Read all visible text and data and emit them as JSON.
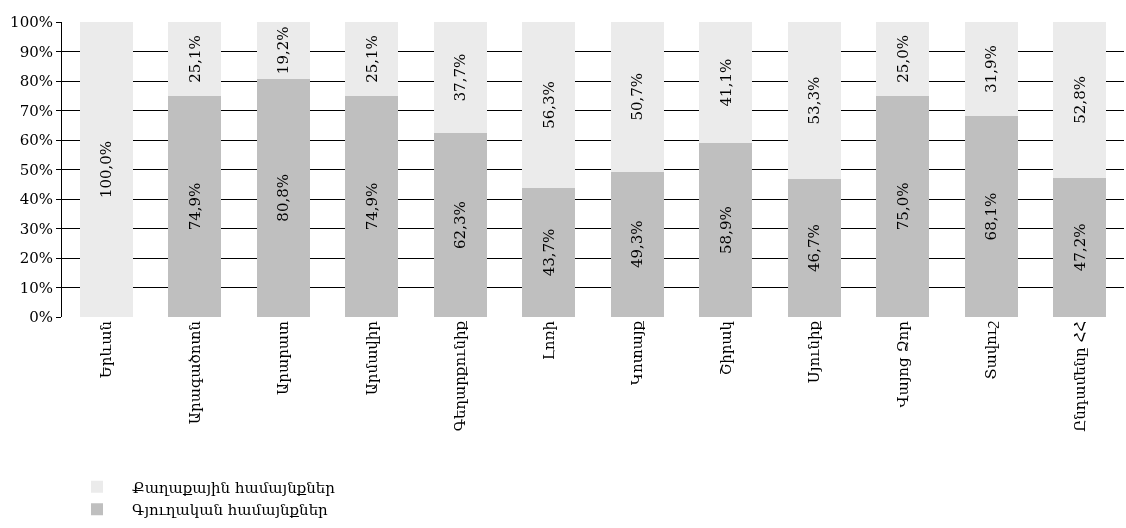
{
  "chart_data": {
    "type": "bar",
    "stacked": true,
    "categories": [
      "Երևան",
      "Արագածոտն",
      "Արարատ",
      "Արմավիր",
      "Գեղարքունիք",
      "Լոռի",
      "Կոտայք",
      "Շիրակ",
      "Սյունիք",
      "Վայոց Ձոր",
      "Տավուշ",
      "Ընդամենը ՀՀ"
    ],
    "series": [
      {
        "name": "Գյուղական համայնքներ",
        "color": "#bfbfbf",
        "values": [
          0,
          74.9,
          80.8,
          74.9,
          62.3,
          43.7,
          49.3,
          58.9,
          46.7,
          75.0,
          68.1,
          47.2
        ],
        "value_labels": [
          null,
          "74,9%",
          "80,8%",
          "74,9%",
          "62,3%",
          "43,7%",
          "49,3%",
          "58,9%",
          "46,7%",
          "75,0%",
          "68,1%",
          "47,2%"
        ]
      },
      {
        "name": "Քաղաքային համայնքներ",
        "color": "#ebebeb",
        "values": [
          100.0,
          25.1,
          19.2,
          25.1,
          37.7,
          56.3,
          50.7,
          41.1,
          53.3,
          25.0,
          31.9,
          52.8
        ],
        "value_labels": [
          "100,0%",
          "25,1%",
          "19,2%",
          "25,1%",
          "37,7%",
          "56,3%",
          "50,7%",
          "41,1%",
          "53,3%",
          "25,0%",
          "31,9%",
          "52,8%"
        ]
      }
    ],
    "ylim": [
      0,
      100
    ],
    "yticks": [
      {
        "value": 0,
        "label": "0%"
      },
      {
        "value": 10,
        "label": "10%"
      },
      {
        "value": 20,
        "label": "20%"
      },
      {
        "value": 30,
        "label": "30%"
      },
      {
        "value": 40,
        "label": "40%"
      },
      {
        "value": 50,
        "label": "50%"
      },
      {
        "value": 60,
        "label": "60%"
      },
      {
        "value": 70,
        "label": "70%"
      },
      {
        "value": 80,
        "label": "80%"
      },
      {
        "value": 90,
        "label": "90%"
      },
      {
        "value": 100,
        "label": "100%"
      }
    ],
    "grid": "y",
    "legend": "bottom"
  }
}
